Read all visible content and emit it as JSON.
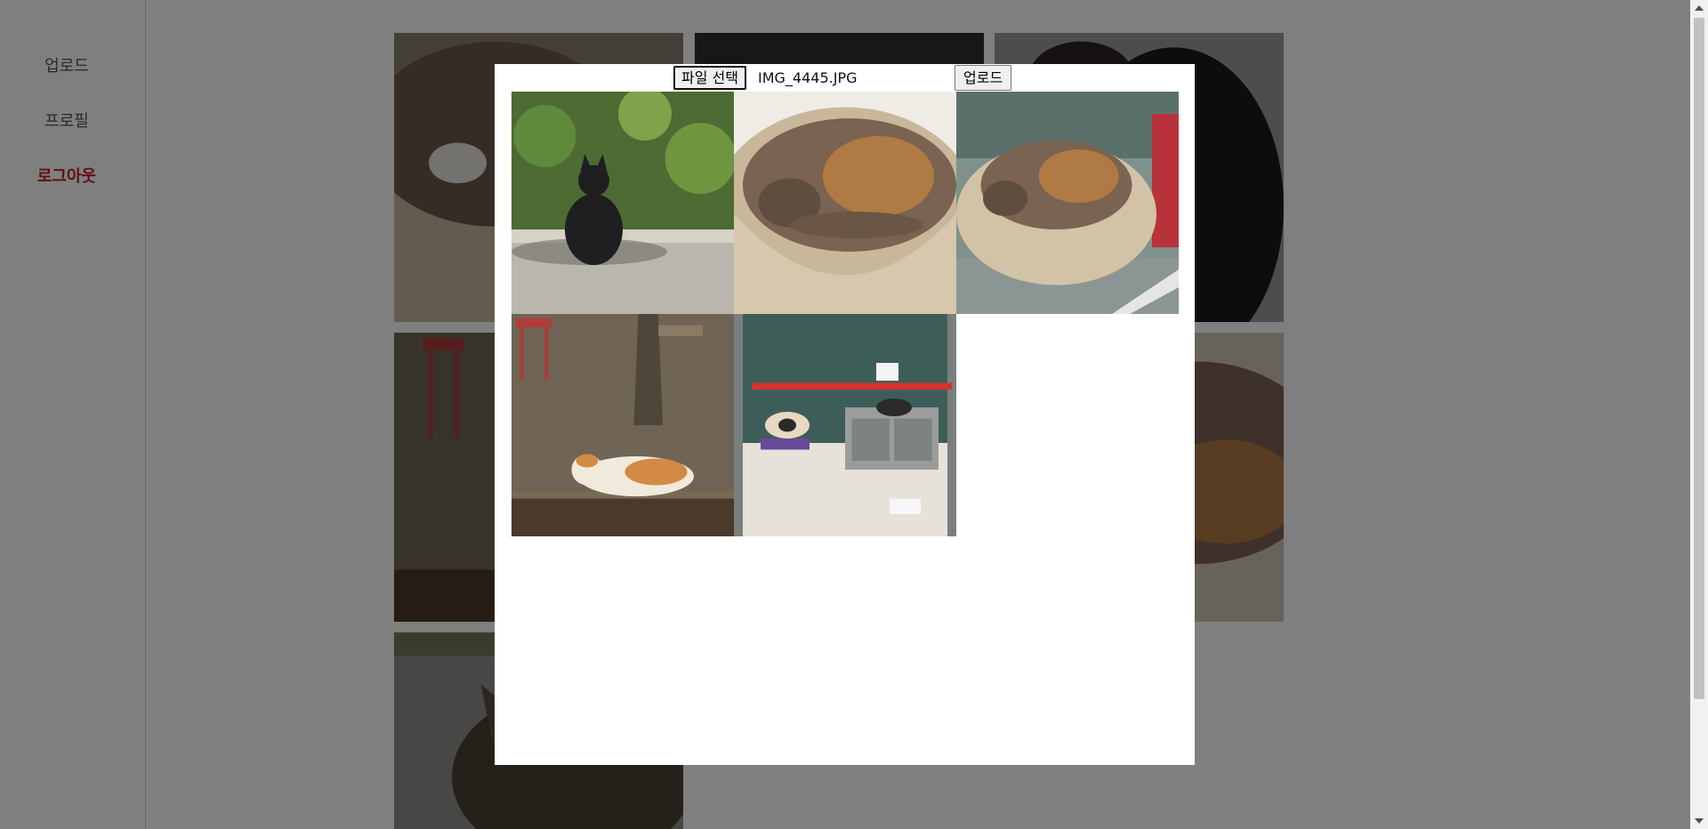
{
  "sidebar": {
    "items": [
      {
        "label": "업로드"
      },
      {
        "label": "프로필"
      },
      {
        "label": "로그아웃"
      }
    ]
  },
  "modal": {
    "file_button_label": "파일 선택",
    "file_name": "IMG_4445.JPG",
    "upload_button_label": "업로드",
    "photos": [
      {
        "subject": "black cat sitting in front of bushes"
      },
      {
        "subject": "calico cat sleeping in round bed"
      },
      {
        "subject": "calico cat sleeping in round bed by window"
      },
      {
        "subject": "orange and white cat on gravel near red stools"
      },
      {
        "subject": "cat shelter with beds behind glass door"
      }
    ]
  },
  "colors": {
    "logout_accent": "#c0202f",
    "overlay": "rgba(0,0,0,0.5)"
  }
}
